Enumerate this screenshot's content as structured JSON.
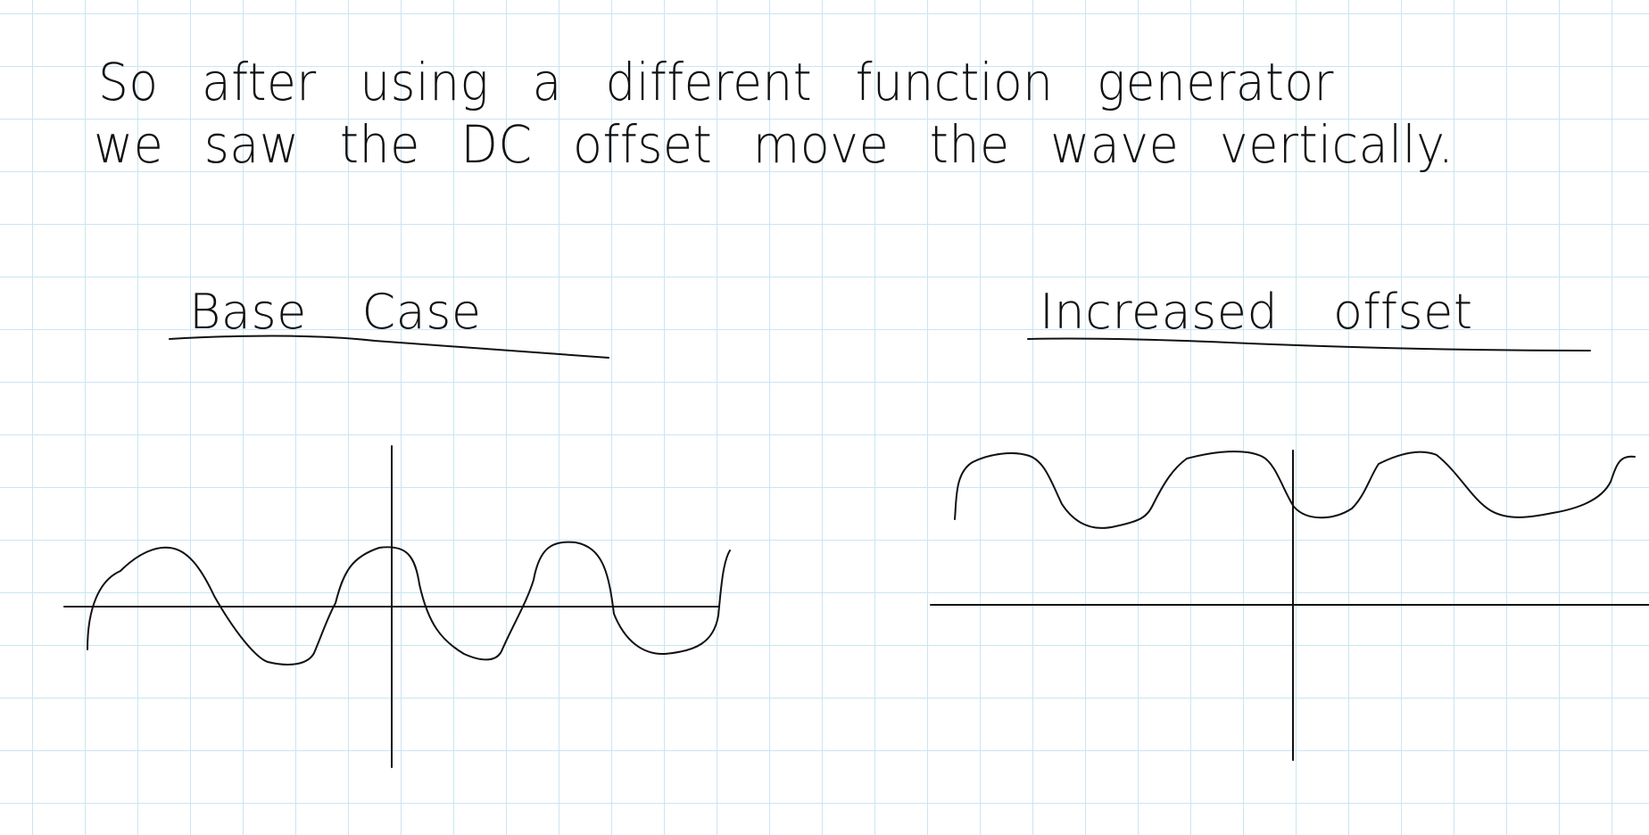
{
  "note": {
    "line1": "So after using a different function generator",
    "line2": "we saw the DC offset move the wave vertically."
  },
  "graphs": {
    "left_title": "Base Case",
    "right_title": "Increased offset"
  }
}
